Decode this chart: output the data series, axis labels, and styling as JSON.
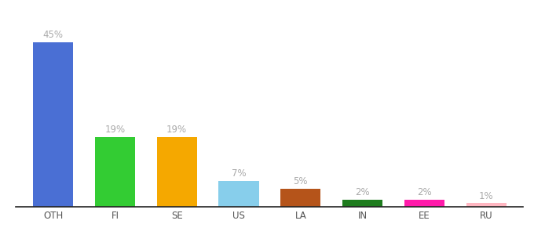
{
  "categories": [
    "OTH",
    "FI",
    "SE",
    "US",
    "LA",
    "IN",
    "EE",
    "RU"
  ],
  "values": [
    45,
    19,
    19,
    7,
    5,
    2,
    2,
    1
  ],
  "bar_colors": [
    "#4a6fd4",
    "#33cc33",
    "#f5a800",
    "#87ceeb",
    "#b5541a",
    "#1e7c1e",
    "#ff1aaa",
    "#ffb6c1"
  ],
  "label_color": "#aaaaaa",
  "background_color": "#ffffff",
  "ylim": [
    0,
    52
  ],
  "bar_width": 0.65,
  "label_fontsize": 8.5,
  "tick_fontsize": 8.5
}
